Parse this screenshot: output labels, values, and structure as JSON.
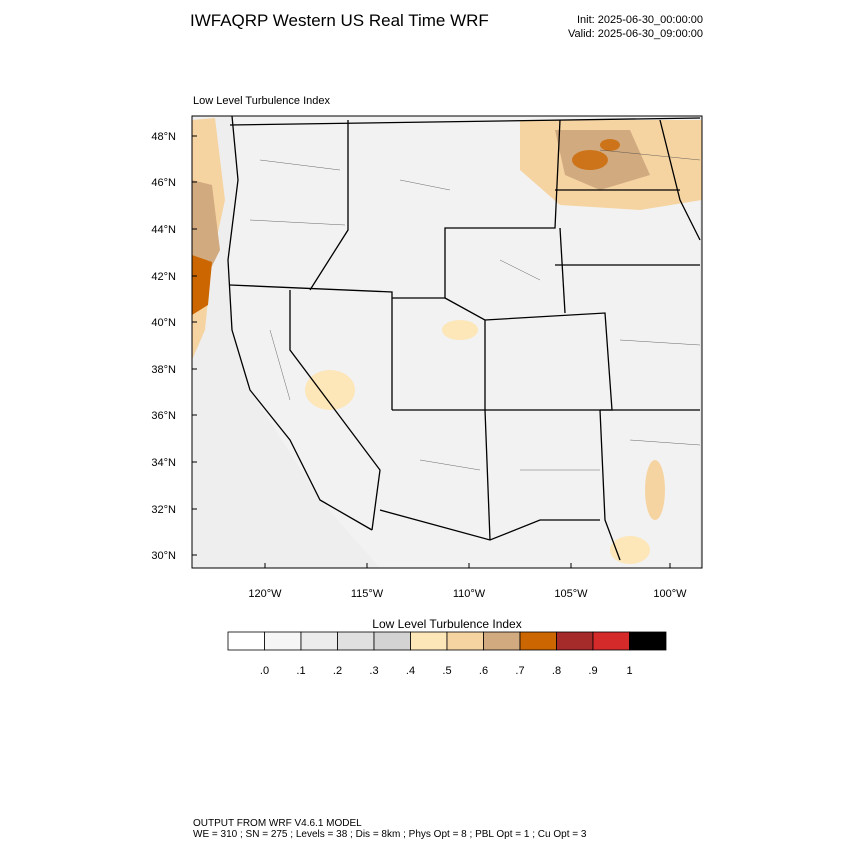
{
  "header": {
    "title": "IWFAQRP Western US Real Time WRF",
    "init": "Init: 2025-06-30_00:00:00",
    "valid": "Valid: 2025-06-30_09:00:00"
  },
  "map": {
    "title": "Low Level Turbulence Index",
    "lat_labels": [
      "48°N",
      "46°N",
      "44°N",
      "42°N",
      "40°N",
      "38°N",
      "36°N",
      "34°N",
      "32°N",
      "30°N"
    ],
    "lon_labels": [
      "120°W",
      "115°W",
      "110°W",
      "105°W",
      "100°W"
    ]
  },
  "colorbar": {
    "title": "Low Level Turbulence Index",
    "colors": [
      "#ffffff",
      "#f6f6f6",
      "#ececec",
      "#e0e0e0",
      "#d3d3d3",
      "#fde6b8",
      "#f6d4a2",
      "#d2aa80",
      "#cc6600",
      "#a52a2a",
      "#d42a2a",
      "#000000"
    ],
    "labels": [
      ".0",
      ".1",
      ".2",
      ".3",
      ".4",
      ".5",
      ".6",
      ".7",
      ".8",
      ".9",
      "1"
    ]
  },
  "footer": {
    "lines": [
      "OUTPUT FROM WRF V4.6.1 MODEL",
      "WE = 310 ; SN = 275 ; Levels = 38 ; Dis = 8km ; Phys Opt = 8 ; PBL Opt = 1 ; Cu Opt = 3"
    ]
  }
}
